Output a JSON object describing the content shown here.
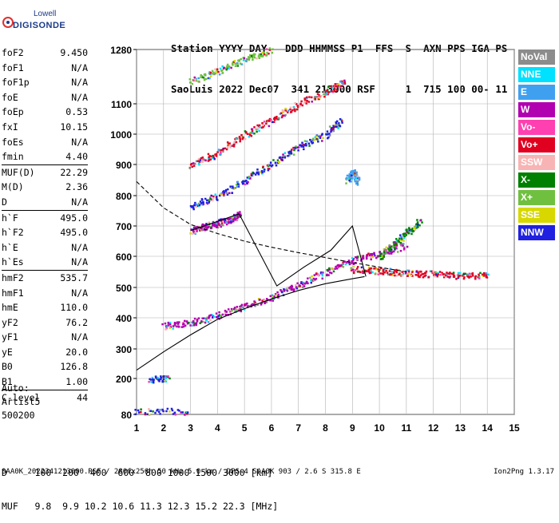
{
  "logo": {
    "line1": "Lowell",
    "line2": "DIGISONDE"
  },
  "header": {
    "line1": "Station YYYY DAY   DDD HHMMSS P1  FFS  S  AXN PPS IGA PS",
    "line2": "SaoLuis 2022 Dec07  341 213000 RSF     1  715 100 00- 11"
  },
  "params": {
    "group1": [
      {
        "label": "foF2",
        "value": "9.450"
      },
      {
        "label": "foF1",
        "value": "N/A"
      },
      {
        "label": "foF1p",
        "value": "N/A"
      },
      {
        "label": "foE",
        "value": "N/A"
      },
      {
        "label": "foEp",
        "value": "0.53"
      },
      {
        "label": "fxI",
        "value": "10.15"
      },
      {
        "label": "foEs",
        "value": "N/A"
      },
      {
        "label": "fmin",
        "value": "4.40"
      }
    ],
    "group2": [
      {
        "label": "MUF(D)",
        "value": "22.29"
      },
      {
        "label": "M(D)",
        "value": "2.36"
      },
      {
        "label": "D",
        "value": "N/A"
      }
    ],
    "group3": [
      {
        "label": "h`F",
        "value": "495.0"
      },
      {
        "label": "h`F2",
        "value": "495.0"
      },
      {
        "label": "h`E",
        "value": "N/A"
      },
      {
        "label": "h`Es",
        "value": "N/A"
      }
    ],
    "group4": [
      {
        "label": "hmF2",
        "value": "535.7"
      },
      {
        "label": "hmF1",
        "value": "N/A"
      },
      {
        "label": "hmE",
        "value": "110.0"
      },
      {
        "label": "yF2",
        "value": "76.2"
      },
      {
        "label": "yF1",
        "value": "N/A"
      },
      {
        "label": "yE",
        "value": "20.0"
      },
      {
        "label": "B0",
        "value": "126.8"
      },
      {
        "label": "B1",
        "value": "1.00"
      }
    ],
    "group5": [
      {
        "label": "C-level",
        "value": "44"
      }
    ]
  },
  "auto": {
    "line1": "Auto:",
    "line2": "Artist5",
    "line3": "500200"
  },
  "legend": [
    {
      "label": "NoVal",
      "color": "#8c8c8c"
    },
    {
      "label": "NNE",
      "color": "#00e0ff"
    },
    {
      "label": "E",
      "color": "#40a0f0"
    },
    {
      "label": "W",
      "color": "#b000b0"
    },
    {
      "label": "Vo-",
      "color": "#ff40b0"
    },
    {
      "label": "Vo+",
      "color": "#e00020"
    },
    {
      "label": "SSW",
      "color": "#f8b4b4"
    },
    {
      "label": "X-",
      "color": "#008000"
    },
    {
      "label": "X+",
      "color": "#70c040"
    },
    {
      "label": "SSE",
      "color": "#d8d800"
    },
    {
      "label": "NNW",
      "color": "#2020e0"
    }
  ],
  "bottom": {
    "d_line": "D     100  200  400  600  800 1000 1500 3000 [km]",
    "muf_line": "MUF   9.8  9.9 10.2 10.6 11.3 12.3 15.2 22.3 [MHz]"
  },
  "footer": {
    "left": "SAA0K_2022341213000.RSF / 280fx256h 50 kHz 5.0 km / DPS-4 SAA0K 903 / 2.6 S 315.8 E",
    "right": "Ion2Png 1.3.17"
  },
  "chart_data": {
    "type": "scatter",
    "title": "",
    "xlabel": "",
    "ylabel": "",
    "xlim": [
      1,
      15
    ],
    "ylim": [
      80,
      1280
    ],
    "x_ticks": [
      1,
      2,
      3,
      4,
      5,
      6,
      7,
      8,
      9,
      10,
      11,
      12,
      13,
      14,
      15
    ],
    "y_ticks": [
      80,
      200,
      300,
      400,
      500,
      600,
      700,
      800,
      900,
      1000,
      1100,
      1280
    ],
    "grid": true,
    "series": [
      {
        "name": "profile",
        "style": "solid",
        "x": [
          1.0,
          2.0,
          3.0,
          4.0,
          5.0,
          6.0,
          7.0,
          8.0,
          9.0,
          9.45
        ],
        "y": [
          228,
          290,
          345,
          395,
          430,
          462,
          490,
          512,
          528,
          535
        ]
      },
      {
        "name": "trace-outline",
        "style": "solid",
        "x": [
          3.0,
          4.0,
          4.8,
          6.2,
          7.2,
          8.2,
          9.0,
          9.5
        ],
        "y": [
          685,
          715,
          740,
          505,
          565,
          620,
          700,
          535
        ]
      },
      {
        "name": "muf-curve",
        "style": "dashed",
        "x": [
          1.0,
          2.0,
          3.0,
          4.0,
          5.0,
          6.0,
          7.0,
          8.0,
          9.0,
          10.0,
          11.0
        ],
        "y": [
          845,
          760,
          705,
          675,
          650,
          630,
          612,
          596,
          580,
          565,
          550
        ]
      }
    ],
    "echo_traces": [
      {
        "x": [
          1.5,
          2.2
        ],
        "y": [
          200,
          200
        ],
        "color": "#2020e0"
      },
      {
        "x": [
          1.0,
          3.0
        ],
        "y": [
          92,
          92
        ],
        "color": "#2020e0"
      },
      {
        "x": [
          2.0,
          3.0,
          4.0,
          5.0,
          6.0,
          7.0,
          8.0,
          9.0,
          10.0,
          11.0
        ],
        "y": [
          375,
          385,
          410,
          440,
          470,
          510,
          550,
          590,
          610,
          640
        ],
        "color": "#b000b0"
      },
      {
        "x": [
          3.0,
          3.5,
          4.0,
          4.5,
          4.8
        ],
        "y": [
          685,
          700,
          710,
          725,
          740
        ],
        "color": "#b000b0"
      },
      {
        "x": [
          3.0,
          4.0,
          5.0,
          6.0,
          7.0,
          8.0,
          8.6
        ],
        "y": [
          768,
          800,
          850,
          905,
          960,
          1000,
          1050
        ],
        "color": "#2020e0"
      },
      {
        "x": [
          3.0,
          4.0,
          5.0,
          6.0,
          7.0,
          8.0,
          8.7
        ],
        "y": [
          900,
          940,
          1000,
          1050,
          1100,
          1140,
          1180
        ],
        "color": "#e00020"
      },
      {
        "x": [
          3.0,
          4.0,
          5.0,
          6.0
        ],
        "y": [
          1175,
          1210,
          1250,
          1280
        ],
        "color": "#70c040"
      },
      {
        "x": [
          8.8,
          9.0,
          9.2
        ],
        "y": [
          850,
          880,
          840
        ],
        "color": "#40a0f0"
      },
      {
        "x": [
          9.0,
          10.0,
          11.0,
          12.0,
          13.0,
          14.0
        ],
        "y": [
          560,
          555,
          548,
          545,
          540,
          540
        ],
        "color": "#e00020"
      },
      {
        "x": [
          10.0,
          10.5,
          11.0,
          11.5
        ],
        "y": [
          600,
          640,
          680,
          720
        ],
        "color": "#008000"
      }
    ]
  }
}
